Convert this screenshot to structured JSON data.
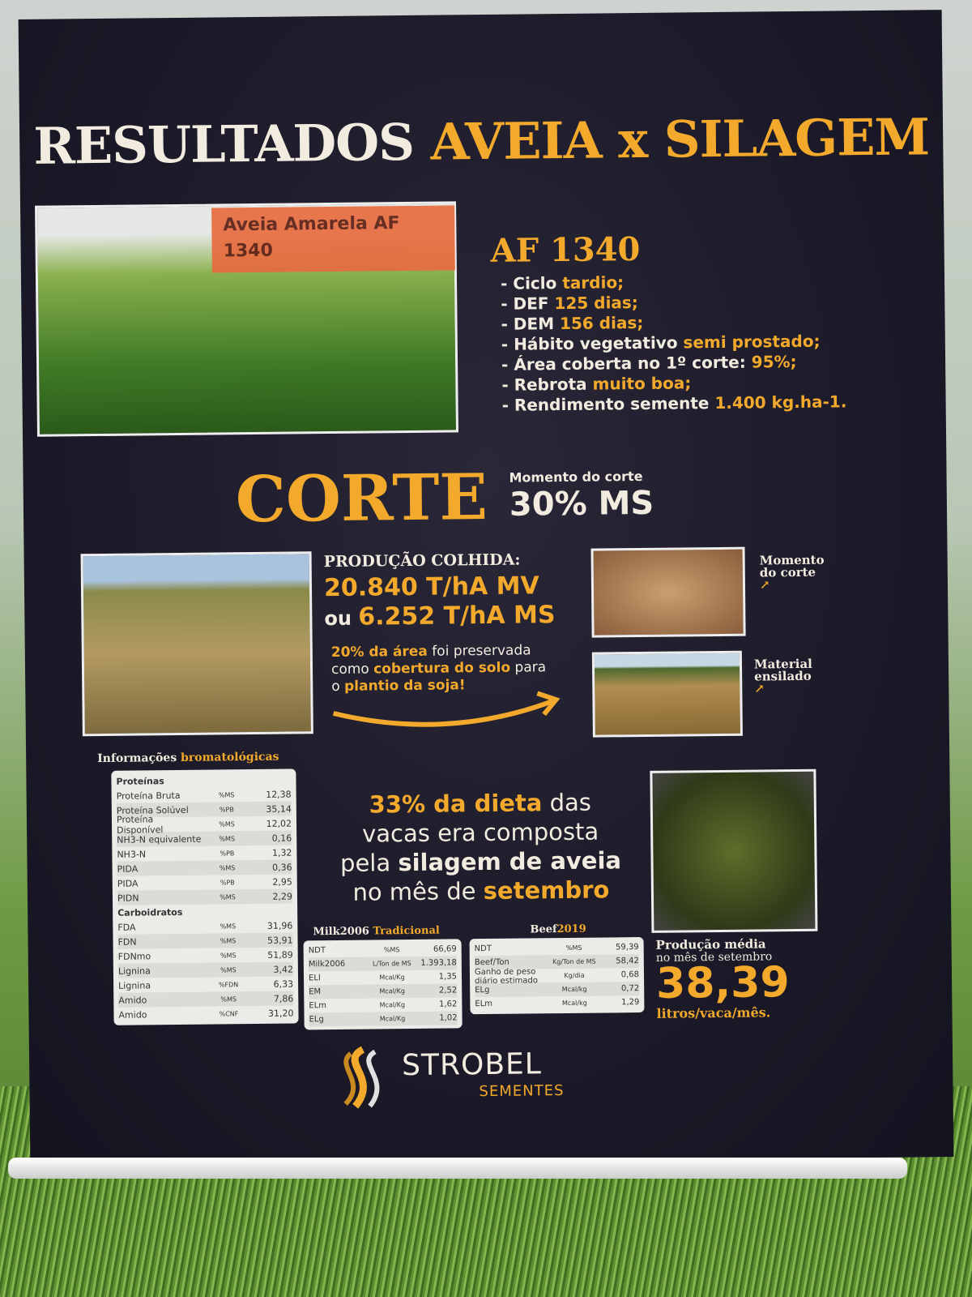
{
  "title": {
    "part1": "RESULTADOS",
    "part2": "AVEIA x SILAGEM"
  },
  "photo_sign": "Aveia Amarela AF 1340",
  "variety": {
    "name": "AF 1340",
    "bullets": [
      {
        "label": "- Ciclo ",
        "value": "tardio;"
      },
      {
        "label": "- DEF ",
        "value": "125 dias;"
      },
      {
        "label": "- DEM ",
        "value": "156 dias;"
      },
      {
        "label": "- Hábito vegetativo ",
        "value": "semi prostado;"
      },
      {
        "label": "- Área coberta no 1º corte: ",
        "value": "95%;"
      },
      {
        "label": "- Rebrota ",
        "value": "muito boa;"
      },
      {
        "label": "- Rendimento semente ",
        "value": "1.400 kg.ha-1."
      }
    ]
  },
  "corte": {
    "title": "CORTE",
    "moment_label": "Momento do corte",
    "moment_value": "30% MS"
  },
  "producao": {
    "label": "PRODUÇÃO COLHIDA:",
    "mv": "20.840 T/hA MV",
    "ou": "ou ",
    "ms": "6.252 T/hA MS",
    "note": [
      "20% da área",
      " foi preservada",
      "como ",
      "cobertura do solo",
      " para",
      "o ",
      "plantio da soja!"
    ]
  },
  "labels": {
    "momento": [
      "Momento",
      "do corte"
    ],
    "material": [
      "Material",
      "ensilado"
    ]
  },
  "info_title": {
    "part1": "Informações ",
    "part2": "bromatológicas"
  },
  "bromato": {
    "proteinas_label": "Proteínas",
    "proteinas": [
      [
        "Proteína Bruta",
        "%MS",
        "12,38"
      ],
      [
        "Proteína Solúvel",
        "%PB",
        "35,14"
      ],
      [
        "Proteína Disponível",
        "%MS",
        "12,02"
      ],
      [
        "NH3-N equivalente",
        "%MS",
        "0,16"
      ],
      [
        "NH3-N",
        "%PB",
        "1,32"
      ],
      [
        "PIDA",
        "%MS",
        "0,36"
      ],
      [
        "PIDA",
        "%PB",
        "2,95"
      ],
      [
        "PIDN",
        "%MS",
        "2,29"
      ]
    ],
    "carboidratos_label": "Carboidratos",
    "carboidratos": [
      [
        "FDA",
        "%MS",
        "31,96"
      ],
      [
        "FDN",
        "%MS",
        "53,91"
      ],
      [
        "FDNmo",
        "%MS",
        "51,89"
      ],
      [
        "Lignina",
        "%MS",
        "3,42"
      ],
      [
        "Lignina",
        "%FDN",
        "6,33"
      ],
      [
        "Amido",
        "%MS",
        "7,86"
      ],
      [
        "Amido",
        "%CNF",
        "31,20"
      ]
    ]
  },
  "diet": [
    "33% da dieta",
    " das",
    "vacas era composta",
    "pela ",
    "silagem de aveia",
    "no mês de ",
    "setembro"
  ],
  "milk": {
    "title1": "Milk2006 ",
    "title2": "Tradicional",
    "rows": [
      [
        "NDT",
        "%MS",
        "66,69"
      ],
      [
        "Milk2006",
        "L/Ton de MS",
        "1.393,18"
      ],
      [
        "ELl",
        "Mcal/Kg",
        "1,35"
      ],
      [
        "EM",
        "Mcal/Kg",
        "2,52"
      ],
      [
        "ELm",
        "Mcal/Kg",
        "1,62"
      ],
      [
        "ELg",
        "Mcal/Kg",
        "1,02"
      ]
    ]
  },
  "beef": {
    "title1": "Beef",
    "title2": "2019",
    "rows": [
      [
        "NDT",
        "%MS",
        "59,39"
      ],
      [
        "Beef/Ton",
        "Kg/Ton de MS",
        "58,42"
      ],
      [
        "Ganho de peso diário estimado",
        "Kg/dia",
        "0,68"
      ],
      [
        "ELg",
        "Mcal/kg",
        "0,72"
      ],
      [
        "ELm",
        "Mcal/kg",
        "1,29"
      ]
    ]
  },
  "producao_media": {
    "l1": "Produção média",
    "l2": "no mês de setembro",
    "value": "38,39",
    "unit": "litros/vaca/mês."
  },
  "brand": {
    "name": "STROBEL",
    "sub": "SEMENTES"
  },
  "colors": {
    "accent": "#f2a92c",
    "banner": "#1c1a28",
    "text": "#f1ecdf"
  }
}
